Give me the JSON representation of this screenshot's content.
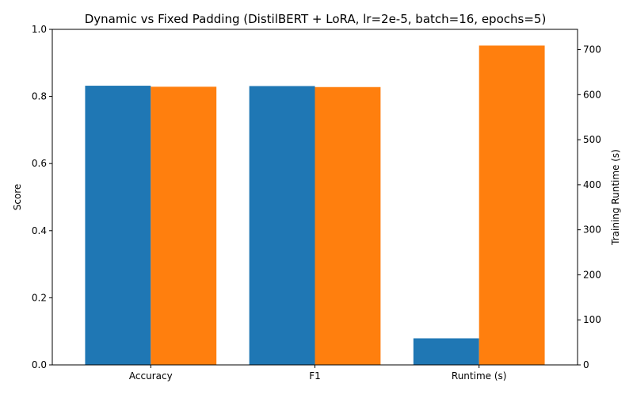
{
  "chart_data": {
    "type": "bar",
    "title": "Dynamic vs Fixed Padding (DistilBERT + LoRA, lr=2e-5, batch=16, epochs=5)",
    "categories": [
      "Accuracy",
      "F1",
      "Runtime (s)"
    ],
    "left_axis": {
      "label": "Score",
      "lim": [
        0,
        1.0
      ],
      "ticks": [
        0.0,
        0.2,
        0.4,
        0.6,
        0.8,
        1.0
      ],
      "tick_labels": [
        "0.0",
        "0.2",
        "0.4",
        "0.6",
        "0.8",
        "1.0"
      ]
    },
    "right_axis": {
      "label": "Training Runtime (s)",
      "lim": [
        0,
        745
      ],
      "ticks": [
        0,
        100,
        200,
        300,
        400,
        500,
        600,
        700
      ],
      "tick_labels": [
        "0",
        "100",
        "200",
        "300",
        "400",
        "500",
        "600",
        "700"
      ]
    },
    "series": [
      {
        "color": "#1f77b4",
        "values": [
          0.832,
          0.831,
          59
        ],
        "axis": [
          "left",
          "left",
          "right"
        ]
      },
      {
        "color": "#ff7f0e",
        "values": [
          0.829,
          0.828,
          709
        ],
        "axis": [
          "left",
          "left",
          "right"
        ]
      }
    ],
    "grid": false,
    "legend": "none"
  }
}
